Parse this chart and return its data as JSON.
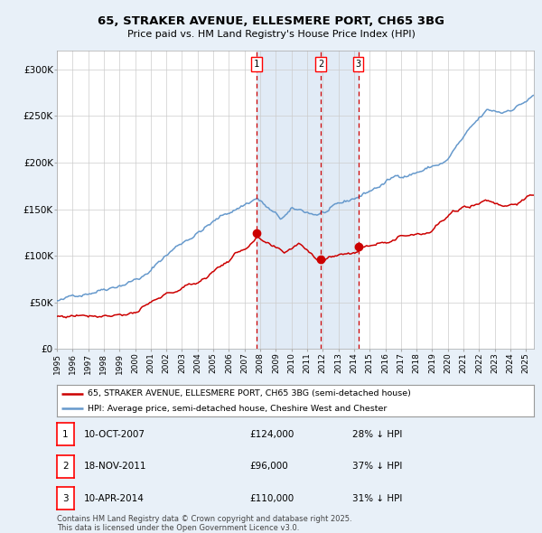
{
  "title1": "65, STRAKER AVENUE, ELLESMERE PORT, CH65 3BG",
  "title2": "Price paid vs. HM Land Registry's House Price Index (HPI)",
  "legend1": "65, STRAKER AVENUE, ELLESMERE PORT, CH65 3BG (semi-detached house)",
  "legend2": "HPI: Average price, semi-detached house, Cheshire West and Chester",
  "transactions": [
    {
      "num": 1,
      "date_str": "10-OCT-2007",
      "date_x": 2007.775,
      "price": 124000,
      "label": "28% ↓ HPI"
    },
    {
      "num": 2,
      "date_str": "18-NOV-2011",
      "date_x": 2011.88,
      "price": 96000,
      "label": "37% ↓ HPI"
    },
    {
      "num": 3,
      "date_str": "10-APR-2014",
      "date_x": 2014.27,
      "price": 110000,
      "label": "31% ↓ HPI"
    }
  ],
  "footnote1": "Contains HM Land Registry data © Crown copyright and database right 2025.",
  "footnote2": "This data is licensed under the Open Government Licence v3.0.",
  "bg_color": "#e8f0f8",
  "plot_bg": "#ffffff",
  "grid_color": "#cccccc",
  "hpi_color": "#6699cc",
  "price_color": "#cc0000",
  "shade_color": "#dce8f5",
  "vline_color": "#cc0000",
  "ylim": [
    0,
    320000
  ],
  "xlim_start": 1995.0,
  "xlim_end": 2025.5
}
